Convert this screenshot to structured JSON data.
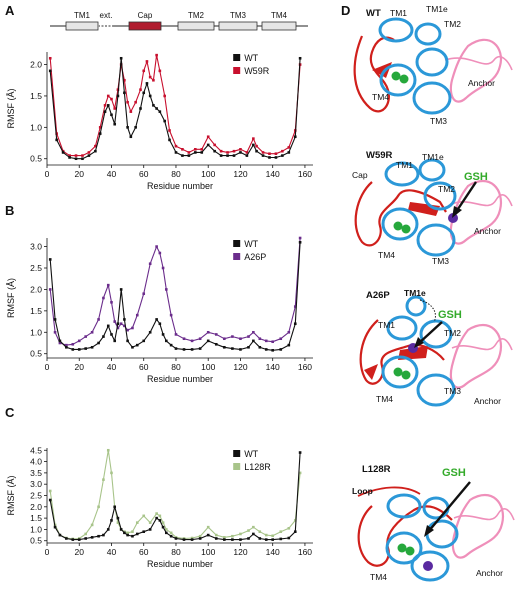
{
  "panel_letters": [
    "A",
    "B",
    "C",
    "D"
  ],
  "domain_bar": {
    "labels": [
      "TM1",
      "ext.",
      "Cap",
      "TM2",
      "TM3",
      "TM4"
    ],
    "cap_color": "#b01c2e",
    "box_color": "#e6e6e6"
  },
  "chart_data": [
    {
      "type": "line",
      "title": "",
      "xlabel": "Residue number",
      "ylabel": "RMSF (Å)",
      "xlim": [
        0,
        165
      ],
      "ylim": [
        0.4,
        2.2
      ],
      "xticks": [
        0,
        20,
        40,
        60,
        80,
        100,
        120,
        140,
        160
      ],
      "yticks": [
        0.5,
        1.0,
        1.5,
        2.0
      ],
      "ytick_labels": [
        "0.5",
        "1.0",
        "1.5",
        "2.0"
      ],
      "legend_position": "top-right",
      "series": [
        {
          "name": "WT",
          "color": "#111111",
          "x": [
            2,
            6,
            10,
            14,
            18,
            22,
            26,
            30,
            33,
            36,
            38,
            40,
            42,
            44,
            46,
            48,
            50,
            52,
            55,
            58,
            60,
            62,
            64,
            66,
            68,
            70,
            73,
            76,
            80,
            84,
            88,
            92,
            96,
            100,
            104,
            108,
            112,
            116,
            120,
            124,
            128,
            130,
            134,
            138,
            142,
            146,
            150,
            154,
            157
          ],
          "y": [
            1.9,
            0.8,
            0.6,
            0.52,
            0.5,
            0.5,
            0.55,
            0.62,
            0.9,
            1.25,
            1.35,
            1.2,
            1.05,
            1.5,
            2.1,
            1.55,
            1.0,
            0.85,
            1.0,
            1.3,
            1.55,
            1.7,
            1.5,
            1.35,
            1.3,
            1.25,
            1.1,
            0.8,
            0.6,
            0.55,
            0.55,
            0.6,
            0.6,
            0.72,
            0.62,
            0.55,
            0.55,
            0.55,
            0.6,
            0.55,
            0.72,
            0.62,
            0.55,
            0.52,
            0.52,
            0.55,
            0.6,
            0.85,
            2.1
          ]
        },
        {
          "name": "W59R",
          "color": "#c8102e",
          "x": [
            2,
            6,
            10,
            14,
            18,
            22,
            26,
            30,
            33,
            36,
            38,
            40,
            42,
            44,
            46,
            48,
            50,
            52,
            55,
            58,
            60,
            62,
            64,
            66,
            68,
            70,
            73,
            76,
            80,
            84,
            88,
            92,
            96,
            100,
            104,
            108,
            112,
            116,
            120,
            124,
            128,
            130,
            134,
            138,
            142,
            146,
            150,
            154,
            157
          ],
          "y": [
            2.1,
            0.9,
            0.62,
            0.55,
            0.55,
            0.55,
            0.6,
            0.7,
            1.0,
            1.35,
            1.5,
            1.45,
            1.3,
            1.6,
            2.0,
            1.75,
            1.4,
            1.25,
            1.4,
            1.6,
            1.9,
            2.05,
            1.8,
            1.75,
            2.15,
            1.9,
            1.5,
            0.95,
            0.7,
            0.65,
            0.6,
            0.65,
            0.65,
            0.85,
            0.72,
            0.62,
            0.6,
            0.62,
            0.65,
            0.6,
            0.82,
            0.7,
            0.6,
            0.58,
            0.58,
            0.62,
            0.68,
            0.95,
            2.0
          ]
        }
      ]
    },
    {
      "type": "line",
      "title": "",
      "xlabel": "Residue number",
      "ylabel": "RMSF (Å)",
      "xlim": [
        0,
        165
      ],
      "ylim": [
        0.4,
        3.2
      ],
      "xticks": [
        0,
        20,
        40,
        60,
        80,
        100,
        120,
        140,
        160
      ],
      "yticks": [
        0.5,
        1.0,
        1.5,
        2.0,
        2.5,
        3.0
      ],
      "ytick_labels": [
        "0.5",
        "1.0",
        "1.5",
        "2.0",
        "2.5",
        "3.0"
      ],
      "legend_position": "top-right",
      "series": [
        {
          "name": "WT",
          "color": "#111111",
          "x": [
            2,
            5,
            8,
            12,
            16,
            20,
            24,
            28,
            32,
            35,
            38,
            40,
            42,
            44,
            46,
            48,
            50,
            53,
            56,
            60,
            64,
            68,
            70,
            72,
            74,
            77,
            80,
            85,
            90,
            95,
            100,
            105,
            110,
            115,
            120,
            125,
            128,
            132,
            136,
            140,
            145,
            150,
            154,
            157
          ],
          "y": [
            2.7,
            1.3,
            0.8,
            0.65,
            0.6,
            0.6,
            0.62,
            0.65,
            0.75,
            0.9,
            1.15,
            0.95,
            0.8,
            1.2,
            2.0,
            1.3,
            0.8,
            0.65,
            0.7,
            0.8,
            1.0,
            1.3,
            1.2,
            0.95,
            0.8,
            0.7,
            0.62,
            0.6,
            0.6,
            0.62,
            0.8,
            0.72,
            0.65,
            0.62,
            0.6,
            0.65,
            0.8,
            0.65,
            0.6,
            0.58,
            0.6,
            0.7,
            1.2,
            3.1
          ]
        },
        {
          "name": "A26P",
          "color": "#6b2d8c",
          "x": [
            2,
            5,
            8,
            12,
            16,
            20,
            24,
            28,
            32,
            35,
            38,
            40,
            42,
            44,
            46,
            48,
            50,
            53,
            56,
            60,
            64,
            68,
            70,
            72,
            74,
            77,
            80,
            85,
            90,
            95,
            100,
            105,
            110,
            115,
            120,
            125,
            128,
            132,
            136,
            140,
            145,
            150,
            154,
            157
          ],
          "y": [
            2.0,
            1.0,
            0.75,
            0.7,
            0.72,
            0.8,
            0.9,
            1.0,
            1.3,
            1.8,
            2.1,
            1.7,
            1.25,
            1.1,
            1.2,
            1.15,
            1.05,
            1.1,
            1.4,
            1.9,
            2.6,
            3.0,
            2.85,
            2.5,
            2.0,
            1.4,
            0.95,
            0.85,
            0.8,
            0.85,
            1.0,
            0.95,
            0.85,
            0.9,
            0.85,
            0.9,
            1.0,
            0.85,
            0.8,
            0.78,
            0.85,
            1.0,
            1.6,
            3.2
          ]
        }
      ]
    },
    {
      "type": "line",
      "title": "",
      "xlabel": "Residue number",
      "ylabel": "RMSF (Å)",
      "xlim": [
        0,
        165
      ],
      "ylim": [
        0.4,
        4.6
      ],
      "xticks": [
        0,
        20,
        40,
        60,
        80,
        100,
        120,
        140,
        160
      ],
      "yticks": [
        0.5,
        1.0,
        1.5,
        2.0,
        2.5,
        3.0,
        3.5,
        4.0,
        4.5
      ],
      "ytick_labels": [
        "0.5",
        "1.0",
        "1.5",
        "2.0",
        "2.5",
        "3.0",
        "3.5",
        "4.0",
        "4.5"
      ],
      "legend_position": "top-right",
      "series": [
        {
          "name": "WT",
          "color": "#111111",
          "x": [
            2,
            5,
            8,
            12,
            16,
            20,
            24,
            28,
            32,
            35,
            38,
            40,
            42,
            44,
            46,
            48,
            50,
            53,
            56,
            60,
            64,
            68,
            70,
            72,
            74,
            77,
            80,
            85,
            90,
            95,
            100,
            105,
            110,
            115,
            120,
            125,
            128,
            132,
            136,
            140,
            145,
            150,
            154,
            157
          ],
          "y": [
            2.3,
            1.1,
            0.75,
            0.6,
            0.55,
            0.55,
            0.6,
            0.65,
            0.7,
            0.75,
            1.0,
            1.4,
            2.0,
            1.5,
            1.0,
            0.85,
            0.75,
            0.7,
            0.8,
            0.9,
            1.0,
            1.5,
            1.4,
            1.1,
            0.85,
            0.7,
            0.6,
            0.55,
            0.55,
            0.6,
            0.75,
            0.6,
            0.55,
            0.55,
            0.55,
            0.6,
            0.8,
            0.6,
            0.55,
            0.55,
            0.58,
            0.62,
            0.9,
            4.4
          ]
        },
        {
          "name": "L128R",
          "color": "#a8c48a",
          "x": [
            2,
            5,
            8,
            12,
            16,
            20,
            24,
            28,
            32,
            35,
            38,
            40,
            42,
            44,
            46,
            48,
            50,
            53,
            56,
            60,
            64,
            68,
            70,
            72,
            74,
            77,
            80,
            85,
            90,
            95,
            100,
            105,
            110,
            115,
            120,
            125,
            128,
            132,
            136,
            140,
            145,
            150,
            154,
            157
          ],
          "y": [
            2.7,
            1.2,
            0.75,
            0.62,
            0.58,
            0.6,
            0.8,
            1.2,
            2.0,
            3.2,
            4.5,
            3.5,
            2.0,
            1.3,
            1.0,
            0.9,
            0.85,
            0.9,
            1.3,
            1.6,
            1.3,
            1.7,
            1.6,
            1.3,
            1.0,
            0.85,
            0.65,
            0.6,
            0.62,
            0.7,
            1.1,
            0.75,
            0.65,
            0.7,
            0.8,
            0.95,
            1.1,
            0.9,
            0.75,
            0.72,
            0.9,
            1.05,
            1.4,
            3.5
          ]
        }
      ]
    }
  ],
  "structures": [
    {
      "mutant": "WT",
      "labels": [
        "TM1",
        "TM1e",
        "TM2",
        "TM4",
        "TM3",
        "Anchor"
      ]
    },
    {
      "mutant": "W59R",
      "gsh": "GSH",
      "labels": [
        "Cap",
        "TM1",
        "TM1e",
        "TM2",
        "TM4",
        "TM3",
        "Anchor"
      ]
    },
    {
      "mutant": "A26P",
      "gsh": "GSH",
      "labels": [
        "TM1e",
        "TM1",
        "TM2",
        "TM4",
        "TM3",
        "Anchor"
      ]
    },
    {
      "mutant": "L128R",
      "gsh": "GSH",
      "labels": [
        "Loop",
        "TM4",
        "Anchor"
      ]
    }
  ],
  "colors": {
    "cap": "#d0201c",
    "helix": "#2b98d8",
    "anchor": "#ef8fba",
    "ligand": "#26a83c",
    "site": "#5a2aa0"
  }
}
